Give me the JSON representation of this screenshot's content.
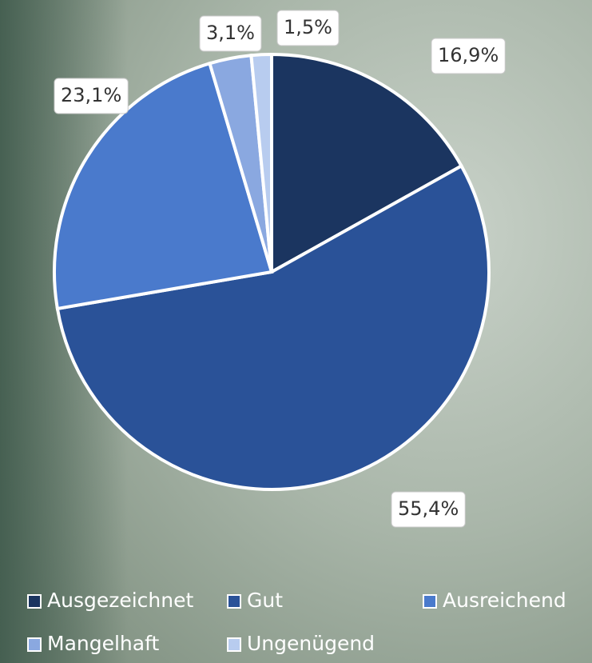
{
  "chart_data": {
    "type": "pie",
    "categories": [
      "Ausgezeichnet",
      "Gut",
      "Ausreichend",
      "Mangelhaft",
      "Ungenügend"
    ],
    "values": [
      16.9,
      55.4,
      23.1,
      3.1,
      1.5
    ],
    "value_labels": [
      "16,9%",
      "55,4%",
      "23,1%",
      "3,1%",
      "1,5%"
    ],
    "colors": [
      "#1b3560",
      "#2a5298",
      "#4a7acc",
      "#8aa8e0",
      "#b8ccef"
    ],
    "legend": "bottom"
  }
}
